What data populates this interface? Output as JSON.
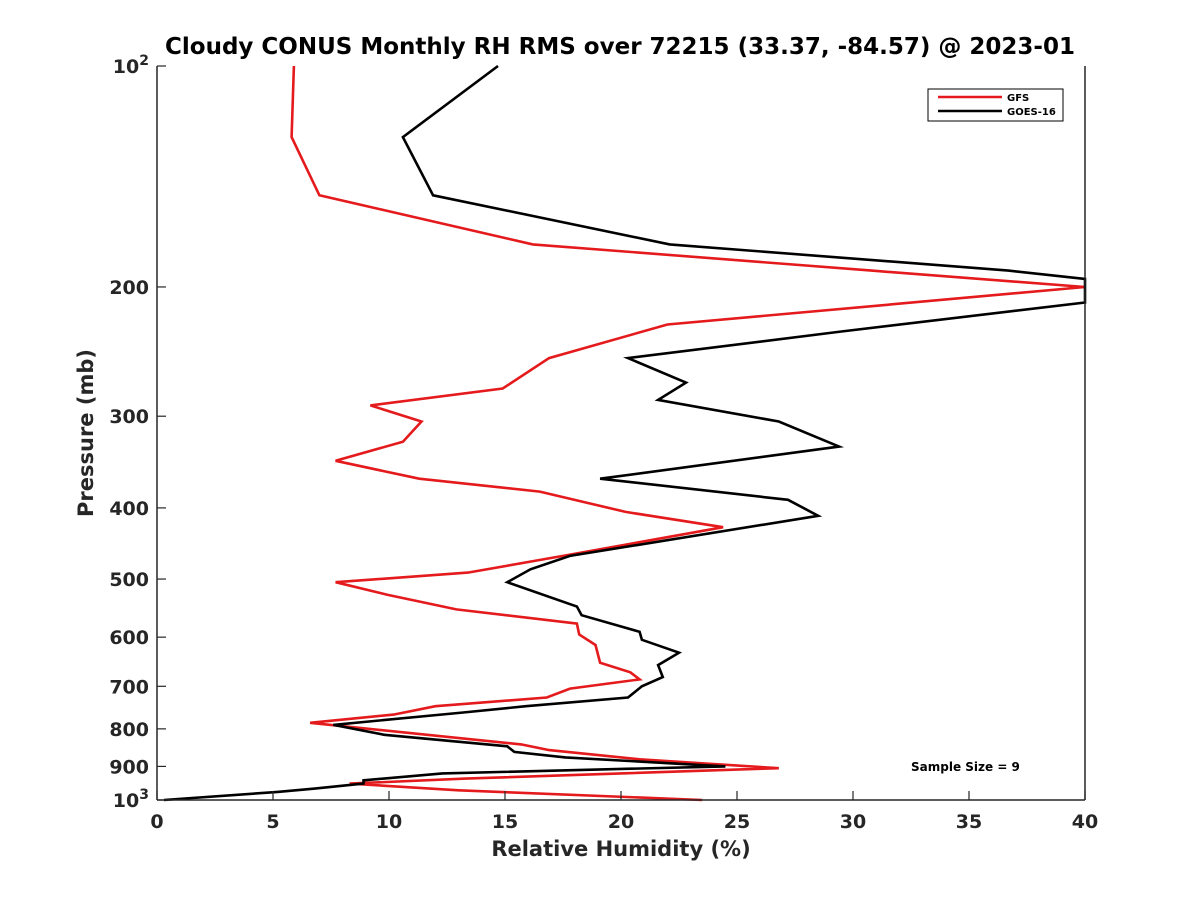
{
  "chart_data": {
    "type": "line",
    "title": "Cloudy CONUS Monthly RH RMS over 72215 (33.37, -84.57) @ 2023-01",
    "xlabel": "Relative Humidity (%)",
    "ylabel": "Pressure (mb)",
    "xlim": [
      0,
      40
    ],
    "ylim": [
      100,
      1000
    ],
    "yscale": "log",
    "y_reversed": true,
    "grid": false,
    "legend_position": "top-right",
    "x_ticks": [
      0,
      5,
      10,
      15,
      20,
      25,
      30,
      35,
      40
    ],
    "y_ticks": [
      {
        "value": 100,
        "base": "10",
        "exp": "2"
      },
      {
        "value": 200,
        "label": "200"
      },
      {
        "value": 300,
        "label": "300"
      },
      {
        "value": 400,
        "label": "400"
      },
      {
        "value": 500,
        "label": "500"
      },
      {
        "value": 600,
        "label": "600"
      },
      {
        "value": 700,
        "label": "700"
      },
      {
        "value": 800,
        "label": "800"
      },
      {
        "value": 900,
        "label": "900"
      },
      {
        "value": 1000,
        "base": "10",
        "exp": "3"
      }
    ],
    "annotation": "Sample Size = 9",
    "series": [
      {
        "name": "GFS",
        "color": "#e41a1c",
        "points": [
          [
            5.9,
            100
          ],
          [
            5.8,
            125
          ],
          [
            7.0,
            150
          ],
          [
            16.2,
            175
          ],
          [
            30.8,
            190
          ],
          [
            40.0,
            200
          ],
          [
            22.0,
            225
          ],
          [
            16.9,
            250
          ],
          [
            14.9,
            275
          ],
          [
            9.2,
            290
          ],
          [
            11.4,
            305
          ],
          [
            10.6,
            325
          ],
          [
            7.7,
            345
          ],
          [
            11.3,
            365
          ],
          [
            16.5,
            380
          ],
          [
            20.2,
            405
          ],
          [
            24.4,
            425
          ],
          [
            17.5,
            465
          ],
          [
            13.4,
            490
          ],
          [
            7.7,
            505
          ],
          [
            9.9,
            525
          ],
          [
            12.9,
            550
          ],
          [
            18.1,
            575
          ],
          [
            18.2,
            595
          ],
          [
            18.9,
            615
          ],
          [
            19.1,
            650
          ],
          [
            20.4,
            670
          ],
          [
            20.8,
            685
          ],
          [
            17.8,
            705
          ],
          [
            16.8,
            725
          ],
          [
            12.0,
            745
          ],
          [
            10.2,
            765
          ],
          [
            6.6,
            785
          ],
          [
            15.7,
            840
          ],
          [
            16.9,
            855
          ],
          [
            20.8,
            880
          ],
          [
            26.8,
            905
          ],
          [
            13.3,
            935
          ],
          [
            8.3,
            950
          ],
          [
            13.0,
            970
          ],
          [
            23.5,
            1000
          ]
        ]
      },
      {
        "name": "GOES-16",
        "color": "#000000",
        "points": [
          [
            14.7,
            100
          ],
          [
            10.6,
            125
          ],
          [
            11.9,
            150
          ],
          [
            22.1,
            175
          ],
          [
            36.7,
            190
          ],
          [
            40.0,
            195
          ],
          [
            40.0,
            210
          ],
          [
            29.5,
            230
          ],
          [
            20.3,
            250
          ],
          [
            22.8,
            270
          ],
          [
            21.6,
            285
          ],
          [
            26.8,
            305
          ],
          [
            29.4,
            330
          ],
          [
            19.1,
            365
          ],
          [
            27.2,
            390
          ],
          [
            28.5,
            410
          ],
          [
            17.8,
            465
          ],
          [
            16.1,
            485
          ],
          [
            15.1,
            505
          ],
          [
            18.1,
            545
          ],
          [
            18.3,
            560
          ],
          [
            20.8,
            590
          ],
          [
            20.9,
            605
          ],
          [
            22.5,
            630
          ],
          [
            21.6,
            655
          ],
          [
            21.8,
            680
          ],
          [
            20.9,
            700
          ],
          [
            20.3,
            725
          ],
          [
            15.9,
            745
          ],
          [
            13.2,
            760
          ],
          [
            7.6,
            790
          ],
          [
            9.8,
            815
          ],
          [
            15.1,
            845
          ],
          [
            15.4,
            860
          ],
          [
            17.6,
            875
          ],
          [
            24.5,
            900
          ],
          [
            12.3,
            920
          ],
          [
            8.9,
            940
          ],
          [
            8.9,
            950
          ],
          [
            6.8,
            965
          ],
          [
            5.2,
            975
          ],
          [
            0.3,
            1000
          ]
        ]
      }
    ]
  }
}
